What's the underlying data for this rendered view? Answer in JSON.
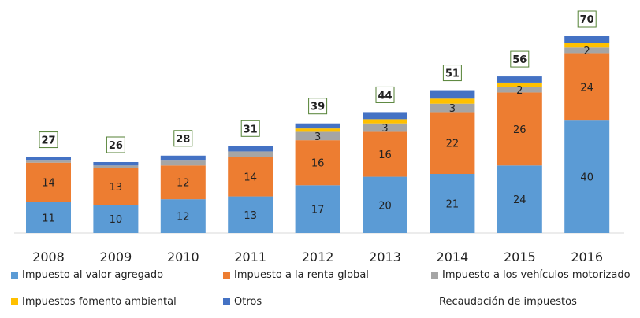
{
  "chart_data": {
    "type": "bar",
    "stacked": true,
    "categories": [
      "2008",
      "2009",
      "2010",
      "2011",
      "2012",
      "2013",
      "2014",
      "2015",
      "2016"
    ],
    "series": [
      {
        "name": "Impuesto al valor agregado",
        "color": "#5b9bd5",
        "values": [
          11,
          10,
          12,
          13,
          17,
          20,
          21,
          24,
          40
        ],
        "labels": [
          "11",
          "10",
          "12",
          "13",
          "17",
          "20",
          "21",
          "24",
          "40"
        ]
      },
      {
        "name": "Impuesto a la renta global",
        "color": "#ed7d31",
        "values": [
          14,
          13,
          12,
          14,
          16,
          16,
          22,
          26,
          24
        ],
        "labels": [
          "14",
          "13",
          "12",
          "14",
          "16",
          "16",
          "22",
          "26",
          "24"
        ]
      },
      {
        "name": "Impuesto a los vehículos motorizado",
        "color": "#a5a5a5",
        "values": [
          1,
          1,
          2,
          2,
          3,
          3,
          3,
          2,
          2
        ],
        "labels": [
          "",
          "",
          "",
          "",
          "3",
          "3",
          "3",
          "2",
          "2"
        ]
      },
      {
        "name": "Impuestos fomento ambiental",
        "color": "#ffc000",
        "values": [
          0,
          0,
          0,
          0,
          1.2,
          1.5,
          1.8,
          1.5,
          1.5
        ],
        "labels": [
          "",
          "",
          "",
          "",
          "",
          "",
          "",
          "",
          ""
        ]
      },
      {
        "name": "Otros",
        "color": "#4472c4",
        "values": [
          1,
          1.2,
          1.5,
          2,
          1.8,
          2.5,
          3,
          2.2,
          2.5
        ],
        "labels": [
          "",
          "",
          "",
          "",
          "",
          "",
          "",
          "",
          ""
        ]
      }
    ],
    "totals": [
      27,
      26,
      28,
      31,
      39,
      44,
      51,
      56,
      70
    ],
    "total_label": "Recaudación de impuestos",
    "title": "",
    "xlabel": "",
    "ylabel": "",
    "ylim": [
      0,
      70
    ],
    "grid": false,
    "legend_position": "bottom"
  }
}
